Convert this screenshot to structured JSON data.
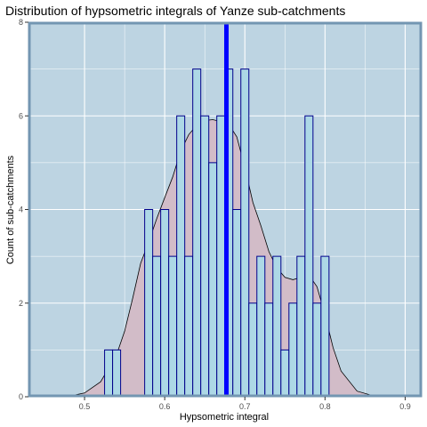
{
  "chart_data": {
    "type": "histogram",
    "title": "Distribution of hypsometric integrals of Yanze sub-catchments",
    "xlabel": "Hypsometric integral",
    "ylabel": "Count of sub-catchments",
    "xlim": [
      0.45,
      0.9
    ],
    "ylim": [
      0,
      8
    ],
    "x_ticks": [
      0.5,
      0.6,
      0.7,
      0.8,
      0.9
    ],
    "x_tick_labels": [
      "0.5",
      "0.6",
      "0.7",
      "0.8",
      "0.9"
    ],
    "y_ticks": [
      0,
      2,
      4,
      6,
      8
    ],
    "y_tick_labels": [
      "0",
      "2",
      "4",
      "6",
      "8"
    ],
    "grid": true,
    "bin_width": 0.01,
    "bins": [
      {
        "x": 0.53,
        "count": 1
      },
      {
        "x": 0.54,
        "count": 1
      },
      {
        "x": 0.55,
        "count": 0
      },
      {
        "x": 0.56,
        "count": 0
      },
      {
        "x": 0.57,
        "count": 0
      },
      {
        "x": 0.58,
        "count": 4
      },
      {
        "x": 0.59,
        "count": 3
      },
      {
        "x": 0.6,
        "count": 4
      },
      {
        "x": 0.61,
        "count": 3
      },
      {
        "x": 0.62,
        "count": 6
      },
      {
        "x": 0.63,
        "count": 3
      },
      {
        "x": 0.64,
        "count": 7
      },
      {
        "x": 0.65,
        "count": 6
      },
      {
        "x": 0.66,
        "count": 5
      },
      {
        "x": 0.67,
        "count": 6
      },
      {
        "x": 0.68,
        "count": 7
      },
      {
        "x": 0.69,
        "count": 4
      },
      {
        "x": 0.7,
        "count": 7
      },
      {
        "x": 0.71,
        "count": 2
      },
      {
        "x": 0.72,
        "count": 3
      },
      {
        "x": 0.73,
        "count": 2
      },
      {
        "x": 0.74,
        "count": 3
      },
      {
        "x": 0.75,
        "count": 1
      },
      {
        "x": 0.76,
        "count": 2
      },
      {
        "x": 0.77,
        "count": 3
      },
      {
        "x": 0.78,
        "count": 6
      },
      {
        "x": 0.79,
        "count": 2
      },
      {
        "x": 0.8,
        "count": 3
      }
    ],
    "mean_line_x": 0.677,
    "density_curve": [
      [
        0.45,
        0.0
      ],
      [
        0.48,
        0.01
      ],
      [
        0.5,
        0.08
      ],
      [
        0.52,
        0.32
      ],
      [
        0.54,
        0.9
      ],
      [
        0.55,
        1.4
      ],
      [
        0.56,
        2.1
      ],
      [
        0.57,
        2.85
      ],
      [
        0.58,
        3.3
      ],
      [
        0.59,
        3.8
      ],
      [
        0.6,
        4.25
      ],
      [
        0.61,
        4.7
      ],
      [
        0.62,
        5.25
      ],
      [
        0.63,
        5.6
      ],
      [
        0.64,
        5.8
      ],
      [
        0.65,
        5.9
      ],
      [
        0.66,
        5.92
      ],
      [
        0.67,
        5.88
      ],
      [
        0.68,
        5.82
      ],
      [
        0.69,
        5.55
      ],
      [
        0.7,
        4.9
      ],
      [
        0.71,
        4.15
      ],
      [
        0.72,
        3.65
      ],
      [
        0.73,
        3.1
      ],
      [
        0.74,
        2.75
      ],
      [
        0.75,
        2.55
      ],
      [
        0.76,
        2.5
      ],
      [
        0.77,
        2.55
      ],
      [
        0.78,
        2.6
      ],
      [
        0.79,
        2.35
      ],
      [
        0.8,
        1.75
      ],
      [
        0.81,
        1.05
      ],
      [
        0.82,
        0.55
      ],
      [
        0.84,
        0.12
      ],
      [
        0.86,
        0.02
      ],
      [
        0.9,
        0.0
      ]
    ],
    "colors": {
      "panel_background": "#bdd4e2",
      "panel_border": "#7396b2",
      "grid": "#ffffff",
      "bar_fill": "#add8e6",
      "bar_stroke": "#00008b",
      "density_fill": "#d2bcc8",
      "density_line": "#000000",
      "mean_line": "#0000ff"
    }
  }
}
